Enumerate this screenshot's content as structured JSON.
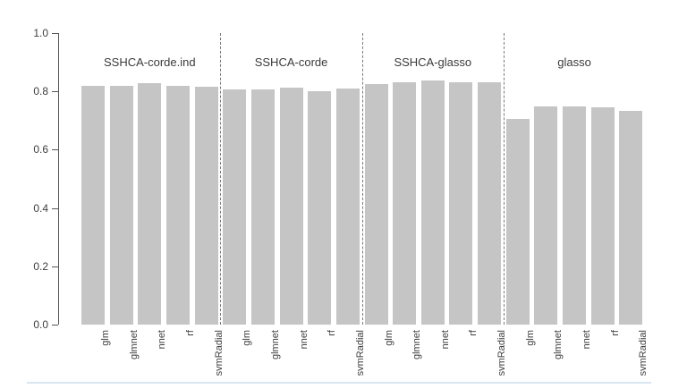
{
  "chart_data": {
    "type": "bar",
    "title": "",
    "xlabel": "",
    "ylabel": "",
    "ylim": [
      0.0,
      1.0
    ],
    "ytick_labels": [
      "1.0",
      "0.8",
      "0.6",
      "0.4",
      "0.2",
      "0.0"
    ],
    "ytick_values": [
      1.0,
      0.8,
      0.6,
      0.4,
      0.2,
      0.0
    ],
    "grid": false,
    "legend": null,
    "bar_color": "#c5c5c5",
    "group_separator_style": "dashed",
    "categories": [
      "glm",
      "glmnet",
      "nnet",
      "rf",
      "svmRadial"
    ],
    "series": [
      {
        "name": "SSHCA-corde.ind",
        "values": [
          0.818,
          0.82,
          0.827,
          0.818,
          0.817
        ]
      },
      {
        "name": "SSHCA-corde",
        "values": [
          0.806,
          0.808,
          0.813,
          0.802,
          0.81
        ]
      },
      {
        "name": "SSHCA-glasso",
        "values": [
          0.826,
          0.83,
          0.838,
          0.832,
          0.83
        ]
      },
      {
        "name": "glasso",
        "values": [
          0.705,
          0.747,
          0.748,
          0.745,
          0.732
        ]
      }
    ]
  }
}
